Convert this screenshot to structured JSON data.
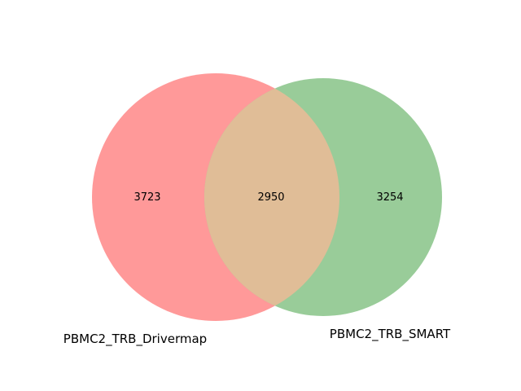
{
  "sets": [
    {
      "name": "PBMC2_TRB_Drivermap",
      "color": "#ff9999"
    },
    {
      "name": "PBMC2_TRB_SMART",
      "color": "#99cc99"
    }
  ],
  "intersection_color": "#e0bd97",
  "regions": {
    "left_only": "3723",
    "both": "2950",
    "right_only": "3254"
  },
  "chart_data": {
    "type": "venn",
    "sets": [
      "PBMC2_TRB_Drivermap",
      "PBMC2_TRB_SMART"
    ],
    "values": {
      "PBMC2_TRB_Drivermap_only": 3723,
      "intersection": 2950,
      "PBMC2_TRB_SMART_only": 3254
    }
  }
}
